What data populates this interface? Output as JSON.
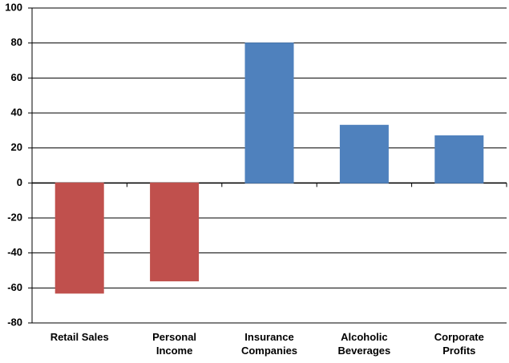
{
  "chart_data": {
    "type": "bar",
    "categories": [
      "Retail Sales",
      "Personal Income",
      "Insurance Companies",
      "Alcoholic Beverages",
      "Corporate Profits"
    ],
    "values": [
      -63,
      -56,
      80,
      33,
      27
    ],
    "colors": [
      "#c0504d",
      "#c0504d",
      "#4f81bd",
      "#4f81bd",
      "#4f81bd"
    ],
    "ylim": [
      -80,
      100
    ],
    "yticks": [
      -80,
      -60,
      -40,
      -20,
      0,
      20,
      40,
      60,
      80,
      100
    ],
    "grid": true
  }
}
